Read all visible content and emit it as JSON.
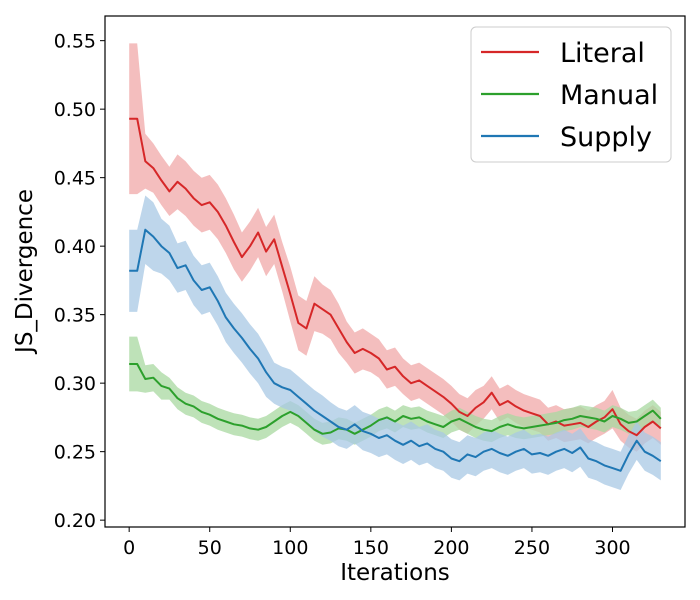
{
  "chart_data": {
    "type": "line",
    "title": "",
    "xlabel": "Iterations",
    "ylabel": "JS_Divergence",
    "xlim": [
      -15,
      345
    ],
    "ylim": [
      0.195,
      0.568
    ],
    "xticks": [
      0,
      50,
      100,
      150,
      200,
      250,
      300
    ],
    "yticks": [
      0.2,
      0.25,
      0.3,
      0.35,
      0.4,
      0.45,
      0.5,
      0.55
    ],
    "grid": false,
    "legend_position": "top-right",
    "series": [
      {
        "name": "Literal",
        "color": "#d62728",
        "band_color": "#f0a8a8",
        "x": [
          0,
          5,
          10,
          15,
          20,
          25,
          30,
          35,
          40,
          45,
          50,
          55,
          60,
          65,
          70,
          75,
          80,
          85,
          90,
          95,
          100,
          105,
          110,
          115,
          120,
          125,
          130,
          135,
          140,
          145,
          150,
          155,
          160,
          165,
          170,
          175,
          180,
          185,
          190,
          195,
          200,
          205,
          210,
          215,
          220,
          225,
          230,
          235,
          240,
          245,
          250,
          255,
          260,
          265,
          270,
          275,
          280,
          285,
          290,
          295,
          300,
          305,
          310,
          315,
          320,
          325,
          330
        ],
        "values": [
          0.493,
          0.493,
          0.462,
          0.457,
          0.448,
          0.44,
          0.447,
          0.442,
          0.435,
          0.43,
          0.432,
          0.425,
          0.415,
          0.403,
          0.392,
          0.4,
          0.41,
          0.396,
          0.405,
          0.385,
          0.365,
          0.344,
          0.34,
          0.358,
          0.354,
          0.35,
          0.34,
          0.33,
          0.322,
          0.325,
          0.322,
          0.318,
          0.31,
          0.312,
          0.305,
          0.3,
          0.302,
          0.298,
          0.294,
          0.29,
          0.285,
          0.279,
          0.276,
          0.282,
          0.286,
          0.293,
          0.284,
          0.287,
          0.283,
          0.28,
          0.278,
          0.276,
          0.27,
          0.272,
          0.269,
          0.27,
          0.271,
          0.268,
          0.272,
          0.275,
          0.281,
          0.27,
          0.265,
          0.262,
          0.268,
          0.272,
          0.267
        ],
        "spread": [
          0.055,
          0.055,
          0.02,
          0.018,
          0.018,
          0.018,
          0.02,
          0.02,
          0.02,
          0.02,
          0.02,
          0.02,
          0.02,
          0.02,
          0.018,
          0.018,
          0.018,
          0.018,
          0.018,
          0.018,
          0.02,
          0.02,
          0.02,
          0.02,
          0.018,
          0.018,
          0.018,
          0.015,
          0.015,
          0.015,
          0.014,
          0.014,
          0.014,
          0.014,
          0.013,
          0.013,
          0.013,
          0.013,
          0.013,
          0.013,
          0.013,
          0.013,
          0.013,
          0.013,
          0.012,
          0.012,
          0.012,
          0.012,
          0.012,
          0.012,
          0.012,
          0.012,
          0.012,
          0.012,
          0.012,
          0.012,
          0.012,
          0.012,
          0.012,
          0.012,
          0.014,
          0.012,
          0.012,
          0.012,
          0.012,
          0.012,
          0.012
        ]
      },
      {
        "name": "Manual",
        "color": "#2ca02c",
        "band_color": "#a8d8a0",
        "x": [
          0,
          5,
          10,
          15,
          20,
          25,
          30,
          35,
          40,
          45,
          50,
          55,
          60,
          65,
          70,
          75,
          80,
          85,
          90,
          95,
          100,
          105,
          110,
          115,
          120,
          125,
          130,
          135,
          140,
          145,
          150,
          155,
          160,
          165,
          170,
          175,
          180,
          185,
          190,
          195,
          200,
          205,
          210,
          215,
          220,
          225,
          230,
          235,
          240,
          245,
          250,
          255,
          260,
          265,
          270,
          275,
          280,
          285,
          290,
          295,
          300,
          305,
          310,
          315,
          320,
          325,
          330
        ],
        "values": [
          0.314,
          0.314,
          0.303,
          0.304,
          0.298,
          0.296,
          0.289,
          0.285,
          0.283,
          0.279,
          0.277,
          0.274,
          0.272,
          0.27,
          0.269,
          0.267,
          0.266,
          0.268,
          0.272,
          0.276,
          0.279,
          0.276,
          0.271,
          0.266,
          0.263,
          0.264,
          0.267,
          0.266,
          0.263,
          0.266,
          0.269,
          0.273,
          0.275,
          0.272,
          0.276,
          0.274,
          0.275,
          0.272,
          0.27,
          0.268,
          0.272,
          0.274,
          0.271,
          0.268,
          0.266,
          0.265,
          0.268,
          0.27,
          0.268,
          0.267,
          0.268,
          0.269,
          0.27,
          0.271,
          0.273,
          0.274,
          0.276,
          0.275,
          0.274,
          0.272,
          0.276,
          0.274,
          0.271,
          0.272,
          0.276,
          0.28,
          0.274
        ],
        "spread": [
          0.02,
          0.02,
          0.01,
          0.01,
          0.01,
          0.008,
          0.008,
          0.008,
          0.008,
          0.008,
          0.008,
          0.008,
          0.008,
          0.008,
          0.008,
          0.008,
          0.008,
          0.008,
          0.008,
          0.008,
          0.008,
          0.008,
          0.008,
          0.008,
          0.008,
          0.008,
          0.008,
          0.008,
          0.008,
          0.008,
          0.008,
          0.008,
          0.008,
          0.008,
          0.008,
          0.008,
          0.008,
          0.008,
          0.008,
          0.008,
          0.008,
          0.008,
          0.008,
          0.008,
          0.008,
          0.008,
          0.008,
          0.008,
          0.008,
          0.008,
          0.008,
          0.008,
          0.008,
          0.008,
          0.008,
          0.008,
          0.008,
          0.008,
          0.008,
          0.008,
          0.008,
          0.008,
          0.008,
          0.008,
          0.008,
          0.008,
          0.008
        ]
      },
      {
        "name": "Supply",
        "color": "#1f77b4",
        "band_color": "#a8c8e4",
        "x": [
          0,
          5,
          10,
          15,
          20,
          25,
          30,
          35,
          40,
          45,
          50,
          55,
          60,
          65,
          70,
          75,
          80,
          85,
          90,
          95,
          100,
          105,
          110,
          115,
          120,
          125,
          130,
          135,
          140,
          145,
          150,
          155,
          160,
          165,
          170,
          175,
          180,
          185,
          190,
          195,
          200,
          205,
          210,
          215,
          220,
          225,
          230,
          235,
          240,
          245,
          250,
          255,
          260,
          265,
          270,
          275,
          280,
          285,
          290,
          295,
          300,
          305,
          310,
          315,
          320,
          325,
          330
        ],
        "values": [
          0.382,
          0.382,
          0.412,
          0.407,
          0.4,
          0.395,
          0.384,
          0.386,
          0.375,
          0.368,
          0.37,
          0.36,
          0.348,
          0.34,
          0.333,
          0.325,
          0.318,
          0.308,
          0.3,
          0.297,
          0.295,
          0.29,
          0.285,
          0.28,
          0.276,
          0.272,
          0.268,
          0.266,
          0.27,
          0.265,
          0.263,
          0.26,
          0.262,
          0.258,
          0.255,
          0.258,
          0.254,
          0.256,
          0.252,
          0.25,
          0.245,
          0.243,
          0.248,
          0.246,
          0.25,
          0.252,
          0.249,
          0.247,
          0.25,
          0.252,
          0.248,
          0.249,
          0.247,
          0.25,
          0.252,
          0.249,
          0.253,
          0.245,
          0.243,
          0.24,
          0.238,
          0.236,
          0.248,
          0.258,
          0.25,
          0.247,
          0.243
        ],
        "spread": [
          0.03,
          0.03,
          0.025,
          0.025,
          0.02,
          0.02,
          0.018,
          0.018,
          0.018,
          0.018,
          0.018,
          0.018,
          0.018,
          0.018,
          0.018,
          0.018,
          0.018,
          0.018,
          0.015,
          0.015,
          0.015,
          0.015,
          0.015,
          0.015,
          0.015,
          0.014,
          0.014,
          0.014,
          0.014,
          0.014,
          0.014,
          0.014,
          0.014,
          0.014,
          0.014,
          0.014,
          0.014,
          0.014,
          0.014,
          0.014,
          0.014,
          0.014,
          0.014,
          0.014,
          0.014,
          0.014,
          0.014,
          0.014,
          0.014,
          0.014,
          0.014,
          0.014,
          0.014,
          0.014,
          0.014,
          0.014,
          0.014,
          0.014,
          0.014,
          0.014,
          0.014,
          0.014,
          0.014,
          0.014,
          0.014,
          0.014,
          0.014
        ]
      }
    ]
  }
}
